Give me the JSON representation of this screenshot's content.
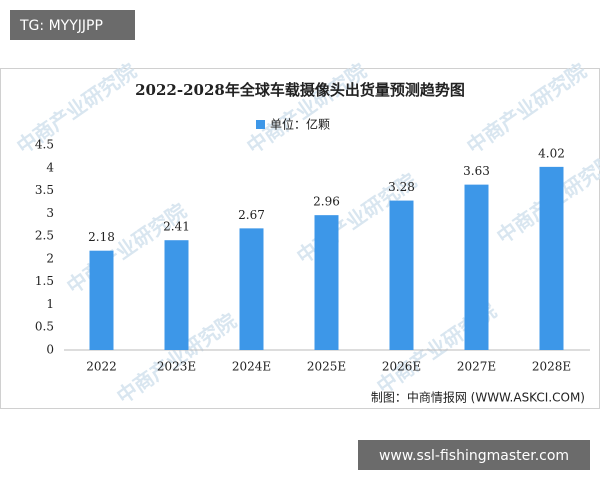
{
  "tag": "TG: MYYJJPP",
  "footer_url": "www.ssl-fishingmaster.com",
  "chart_data": {
    "type": "bar",
    "title": "2022-2028年全球车载摄像头出货量预测趋势图",
    "categories": [
      "2022",
      "2023E",
      "2024E",
      "2025E",
      "2026E",
      "2027E",
      "2028E"
    ],
    "series": [
      {
        "name": "单位：亿颗",
        "color": "#3d97e8",
        "values": [
          2.18,
          2.41,
          2.67,
          2.96,
          3.28,
          3.63,
          4.02
        ]
      }
    ],
    "ylim": [
      0,
      4.5
    ],
    "yticks": [
      0,
      0.5,
      1,
      1.5,
      2,
      2.5,
      3,
      3.5,
      4,
      4.5
    ],
    "grid": false,
    "legend": "top",
    "source": "制图：中商情报网 (WWW.ASKCI.COM)",
    "watermark": "中商产业研究院"
  }
}
